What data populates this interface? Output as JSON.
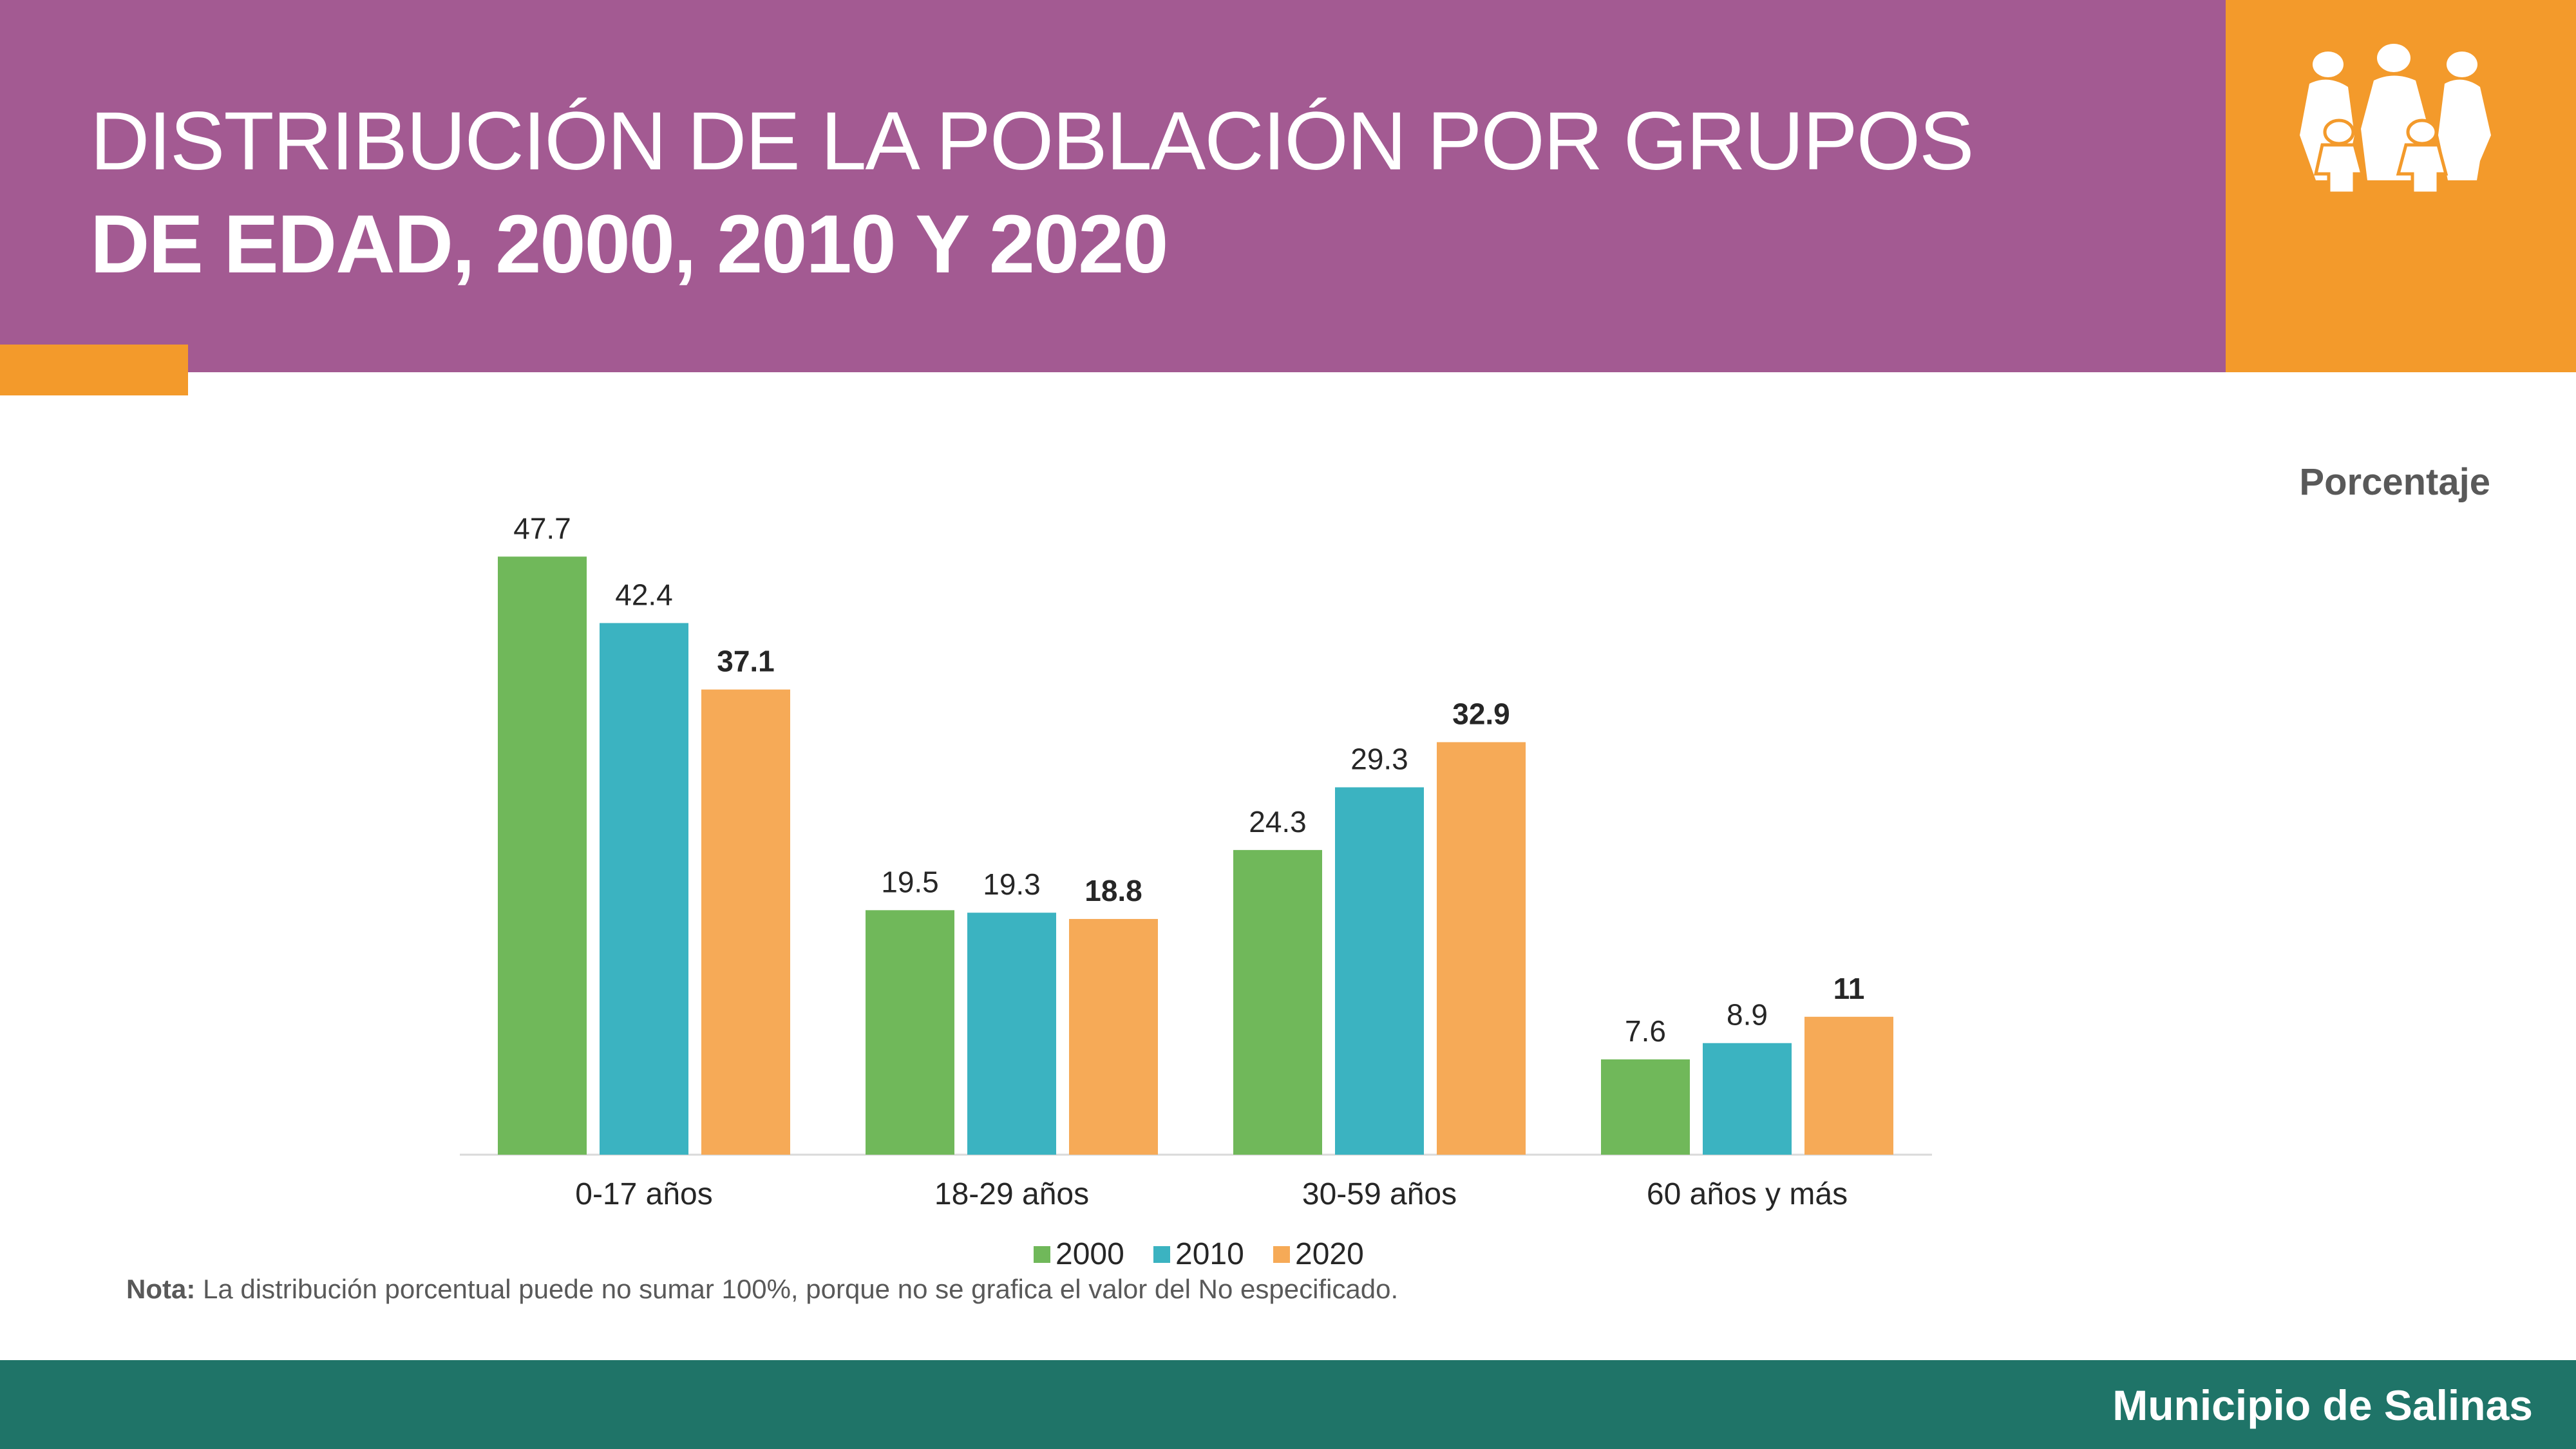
{
  "header": {
    "title_line1": "DISTRIBUCIÓN DE LA POBLACIÓN POR GRUPOS",
    "title_line2": "DE EDAD, 2000, 2010 Y 2020",
    "icon": "family-group-icon"
  },
  "unit_label": "Porcentaje",
  "note": {
    "label": "Nota:",
    "text": " La distribución porcentual puede no sumar 100%, porque no se grafica el valor del No especificado."
  },
  "footer": {
    "text": "Municipio de Salinas"
  },
  "colors": {
    "header": "#A35A92",
    "accent": "#F39A2B",
    "footer": "#1F7468"
  },
  "chart_data": {
    "type": "bar",
    "categories": [
      "0-17 años",
      "18-29 años",
      "30-59 años",
      "60 años y más"
    ],
    "series": [
      {
        "name": "2000",
        "values": [
          47.7,
          19.5,
          24.3,
          7.6
        ],
        "color": "#70B85A",
        "labels": [
          "47.7",
          "19.5",
          "24.3",
          "7.6"
        ],
        "bold_labels": false
      },
      {
        "name": "2010",
        "values": [
          42.4,
          19.3,
          29.3,
          8.9
        ],
        "color": "#3BB3C1",
        "labels": [
          "42.4",
          "19.3",
          "29.3",
          "8.9"
        ],
        "bold_labels": false
      },
      {
        "name": "2020",
        "values": [
          37.1,
          18.8,
          32.9,
          11
        ],
        "color": "#F6AA57",
        "labels": [
          "37.1",
          "18.8",
          "32.9",
          "11"
        ],
        "bold_labels": true
      }
    ],
    "ylim": [
      0,
      50
    ],
    "grid": false,
    "legend": "bottom-center"
  }
}
